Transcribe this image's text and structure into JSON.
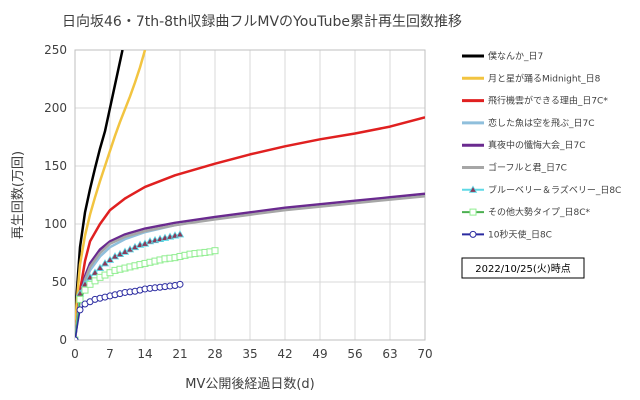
{
  "chart_data": {
    "type": "line",
    "title": "日向坂46・7th-8th収録曲フルMVのYouTube累計再生回数推移",
    "xlabel": "MV公開後経過日数(d)",
    "ylabel": "再生回数(万回)",
    "xlim": [
      0,
      70
    ],
    "ylim": [
      0,
      250
    ],
    "xticks": [
      "0",
      "7",
      "14",
      "21",
      "28",
      "35",
      "42",
      "49",
      "56",
      "63",
      "70"
    ],
    "yticks": [
      "0",
      "50",
      "100",
      "150",
      "200",
      "250"
    ],
    "grid": true,
    "legend_position": "right",
    "annotation": "2022/10/25(火)時点",
    "series": [
      {
        "name": "僕なんか_日7",
        "color": "#000000",
        "marker": "none",
        "x": [
          0,
          0.3,
          1,
          2,
          3,
          4,
          5,
          6,
          7,
          8,
          9.5
        ],
        "y": [
          0,
          38,
          80,
          110,
          130,
          148,
          165,
          180,
          200,
          220,
          250
        ]
      },
      {
        "name": "月と星が踊るMidnight_日8",
        "color": "#f2c440",
        "marker": "none",
        "x": [
          0,
          0.3,
          1,
          2,
          3,
          4,
          5,
          6,
          7,
          8,
          9,
          10,
          11,
          12,
          13,
          14
        ],
        "y": [
          0,
          30,
          65,
          90,
          108,
          123,
          137,
          150,
          163,
          176,
          188,
          199,
          210,
          222,
          235,
          250
        ]
      },
      {
        "name": "飛行機雲ができる理由_日7C*",
        "color": "#e02020",
        "marker": "none",
        "x": [
          0,
          0.5,
          1,
          2,
          3,
          5,
          7,
          10,
          14,
          20,
          28,
          35,
          42,
          49,
          56,
          63,
          70
        ],
        "y": [
          0,
          20,
          42,
          68,
          85,
          100,
          112,
          122,
          132,
          142,
          152,
          160,
          167,
          173,
          178,
          184,
          192
        ]
      },
      {
        "name": "恋した魚は空を飛ぶ_日7C",
        "color": "#8fbfdc",
        "marker": "none",
        "x": [
          0,
          0.5,
          1,
          2,
          3,
          5,
          7,
          10,
          14,
          20,
          28,
          35,
          42,
          49,
          56,
          63,
          70
        ],
        "y": [
          0,
          18,
          35,
          50,
          60,
          72,
          80,
          87,
          93,
          99,
          105,
          109,
          113,
          116,
          119,
          122,
          125
        ]
      },
      {
        "name": "真夜中の懺悔大会_日7C",
        "color": "#6a2a8f",
        "marker": "none",
        "x": [
          0,
          0.5,
          1,
          2,
          3,
          5,
          7,
          10,
          14,
          20,
          28,
          35,
          42,
          49,
          56,
          63,
          70
        ],
        "y": [
          0,
          20,
          38,
          55,
          66,
          78,
          85,
          91,
          96,
          101,
          106,
          110,
          114,
          117,
          120,
          123,
          126
        ]
      },
      {
        "name": "ゴーフルと君_日7C",
        "color": "#a6a6a6",
        "marker": "none",
        "x": [
          0,
          0.5,
          1,
          2,
          3,
          5,
          7,
          10,
          14,
          20,
          28,
          35,
          42,
          49,
          56,
          63,
          70
        ],
        "y": [
          0,
          19,
          36,
          52,
          63,
          75,
          83,
          89,
          94,
          99,
          104,
          108,
          112,
          115,
          118,
          121,
          124
        ]
      },
      {
        "name": "ブルーベリー＆ラズベリー_日8C",
        "color": "#5fd9e6",
        "marker": "triangle",
        "marker_color": "#8b3a5a",
        "x": [
          0,
          1,
          2,
          3,
          4,
          5,
          6,
          7,
          8,
          9,
          10,
          11,
          12,
          13,
          14,
          15,
          16,
          17,
          18,
          19,
          20,
          21
        ],
        "y": [
          0,
          40,
          48,
          54,
          58,
          62,
          66,
          69,
          72,
          74,
          76,
          78,
          80,
          82,
          83,
          85,
          86,
          87,
          88,
          89,
          90,
          91
        ]
      },
      {
        "name": "その他大勢タイプ_日8C*",
        "color": "#4caf50",
        "marker": "square",
        "marker_color": "#90ee90",
        "x": [
          0,
          1,
          2,
          3,
          4,
          5,
          6,
          7,
          8,
          9,
          10,
          11,
          12,
          13,
          14,
          15,
          16,
          17,
          18,
          19,
          20,
          21,
          22,
          23,
          24,
          25,
          26,
          27,
          28
        ],
        "y": [
          0,
          35,
          43,
          48,
          51,
          54,
          56,
          58,
          60,
          61,
          62,
          63,
          64,
          65,
          66,
          67,
          68,
          69,
          70,
          70.5,
          71,
          72,
          73,
          74,
          74.5,
          75,
          75.5,
          76,
          77
        ]
      },
      {
        "name": "10秒天使_日8C",
        "color": "#2a2aa0",
        "marker": "circle",
        "marker_color": "#ffffff",
        "x": [
          0,
          1,
          2,
          3,
          4,
          5,
          6,
          7,
          8,
          9,
          10,
          11,
          12,
          13,
          14,
          15,
          16,
          17,
          18,
          19,
          20,
          21
        ],
        "y": [
          0,
          26,
          31,
          33,
          35,
          36,
          37,
          38,
          39,
          40,
          41,
          41.5,
          42,
          43,
          44,
          44.5,
          45,
          45.5,
          46,
          46.5,
          47,
          48
        ]
      }
    ]
  }
}
